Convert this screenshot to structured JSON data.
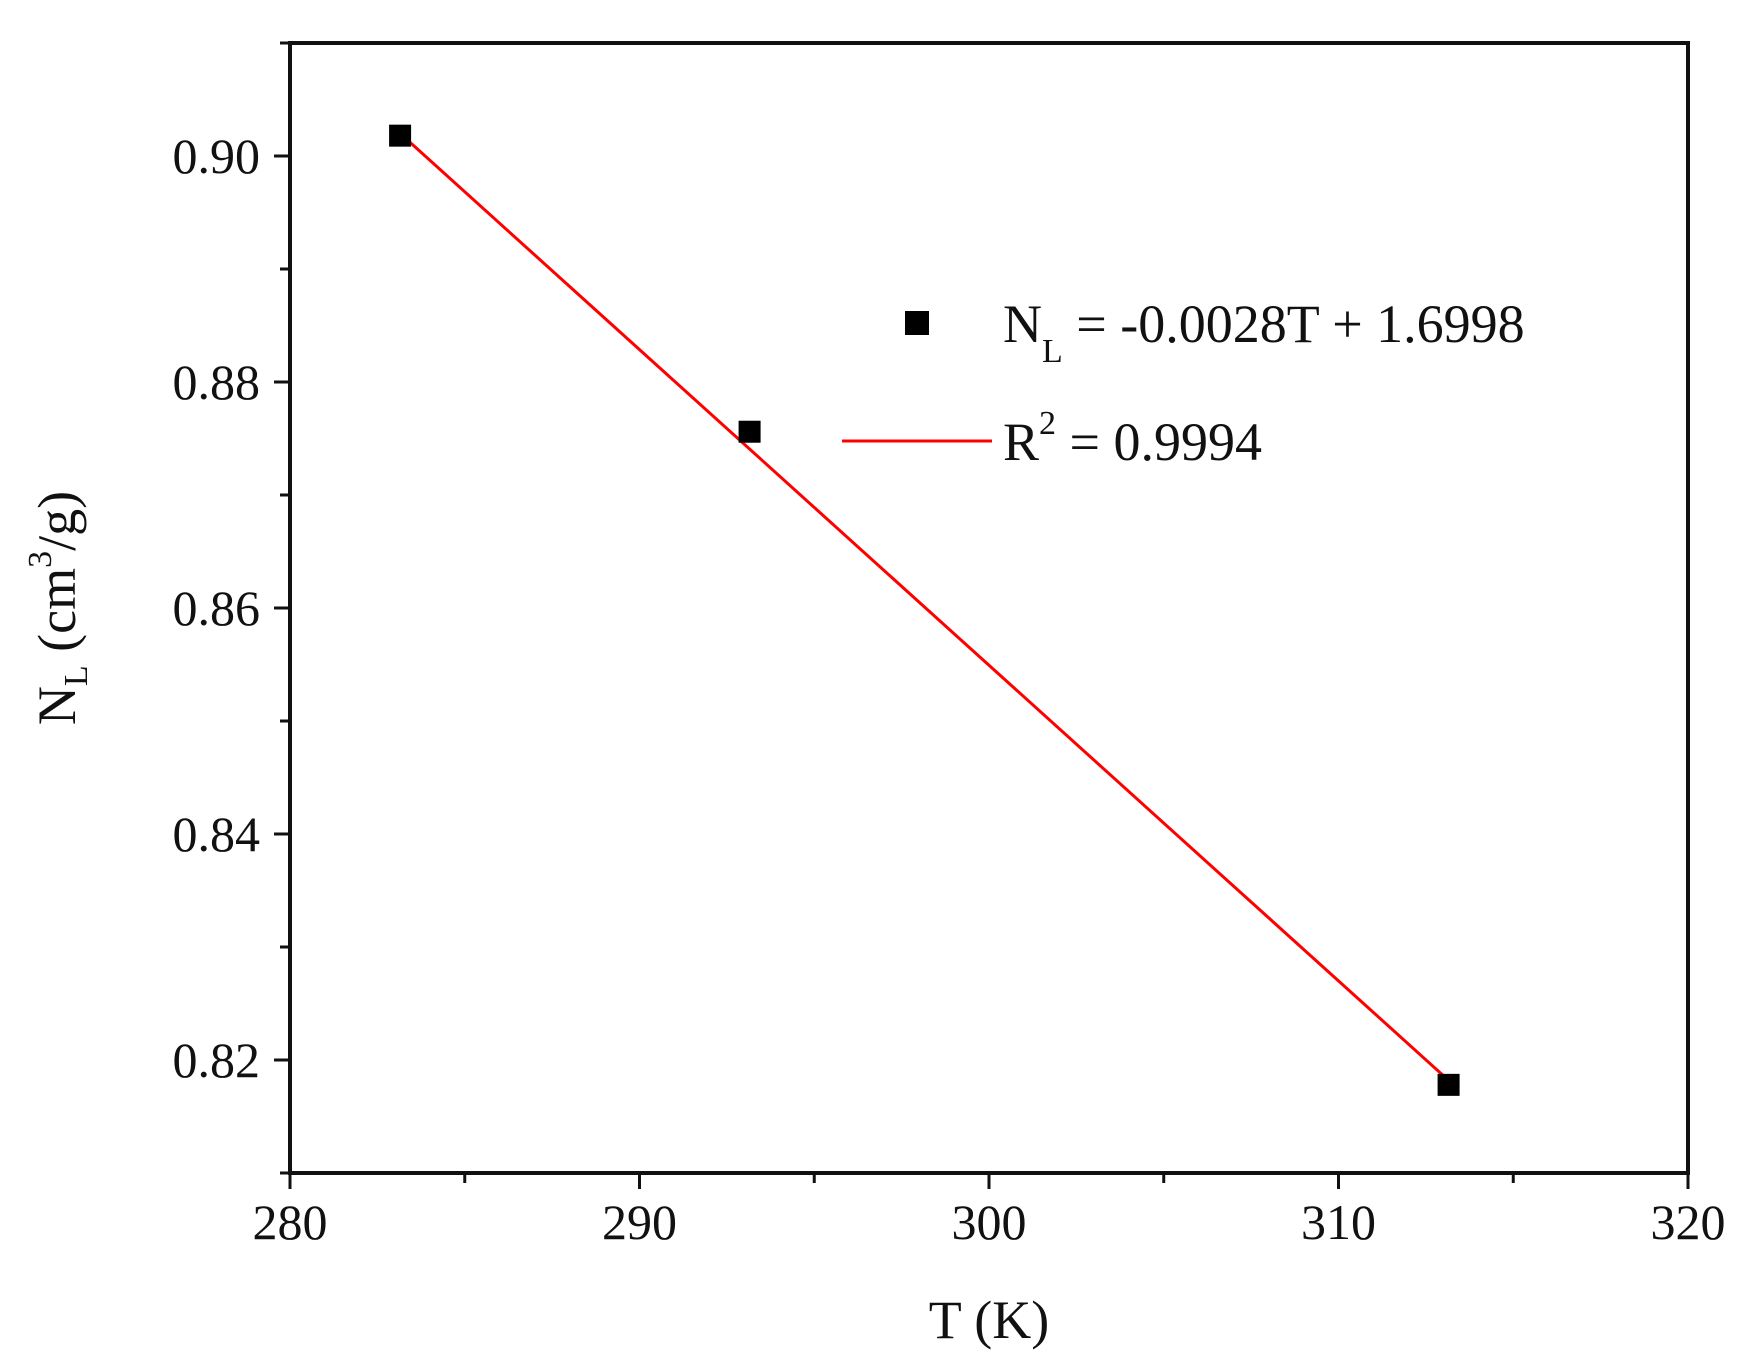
{
  "chart_data": {
    "type": "scatter",
    "xlabel": "T (K)",
    "ylabel": {
      "base": "N",
      "sub": "L",
      "pre_sup": " (cm",
      "sup": "3",
      "post": "/g)"
    },
    "xlim": [
      280,
      320
    ],
    "ylim": [
      0.81,
      0.91
    ],
    "xticks": [
      280,
      290,
      300,
      310,
      320
    ],
    "xtick_labels": [
      "280",
      "290",
      "300",
      "310",
      "320"
    ],
    "yticks": [
      0.82,
      0.84,
      0.86,
      0.88,
      0.9
    ],
    "ytick_labels": [
      "0.82",
      "0.84",
      "0.86",
      "0.88",
      "0.90"
    ],
    "series": [
      {
        "kind": "points",
        "marker": "square",
        "color": "#000000",
        "x": [
          283.15,
          293.15,
          313.15
        ],
        "y": [
          0.9018,
          0.8756,
          0.8178
        ]
      },
      {
        "kind": "fit-line",
        "color": "#ff0000",
        "x": [
          283.15,
          313.15
        ],
        "y": [
          0.902,
          0.8182
        ]
      }
    ],
    "legend": {
      "position": "upper-right",
      "entries": [
        {
          "symbol": "square",
          "color": "#000000",
          "text_base": "N",
          "text_sub": "L",
          "text_rest": " = -0.0028T + 1.6998"
        },
        {
          "symbol": "line",
          "color": "#ff0000",
          "text_base": "R",
          "text_sup": "2",
          "text_rest": " = 0.9994"
        }
      ]
    },
    "grid": false
  }
}
